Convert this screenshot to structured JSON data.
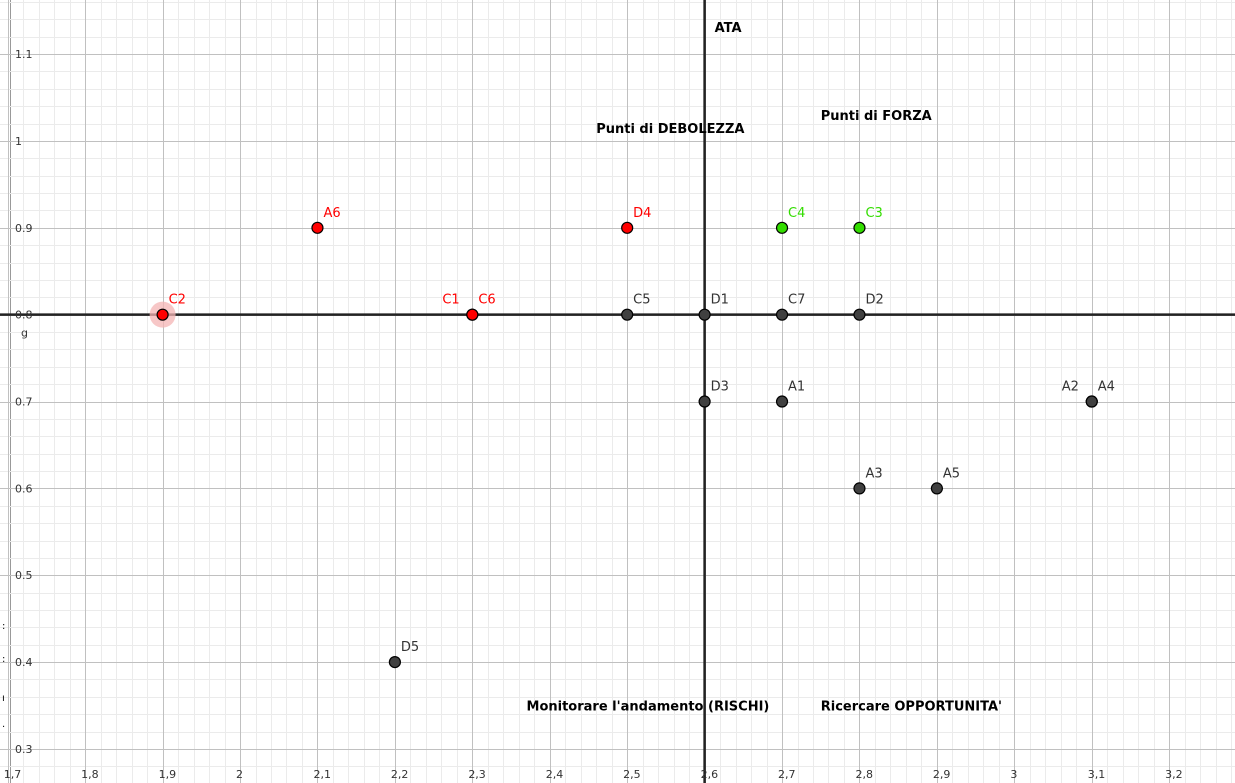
{
  "chart_data": {
    "type": "scatter",
    "title": "",
    "xlabel": "",
    "ylabel": "",
    "xlim": [
      1.69,
      3.285
    ],
    "ylim": [
      0.2608,
      1.1623
    ],
    "grid": true,
    "x_ticks": [
      {
        "value": 1.7,
        "label": "1,7"
      },
      {
        "value": 1.8,
        "label": "1,8"
      },
      {
        "value": 1.9,
        "label": "1,9"
      },
      {
        "value": 2.0,
        "label": "2"
      },
      {
        "value": 2.1,
        "label": "2,1"
      },
      {
        "value": 2.2,
        "label": "2,2"
      },
      {
        "value": 2.3,
        "label": "2,3"
      },
      {
        "value": 2.4,
        "label": "2,4"
      },
      {
        "value": 2.5,
        "label": "2,5"
      },
      {
        "value": 2.6,
        "label": "2,6"
      },
      {
        "value": 2.7,
        "label": "2,7"
      },
      {
        "value": 2.8,
        "label": "2,8"
      },
      {
        "value": 2.9,
        "label": "2,9"
      },
      {
        "value": 3.0,
        "label": "3"
      },
      {
        "value": 3.1,
        "label": "3,1"
      },
      {
        "value": 3.2,
        "label": "3,2"
      }
    ],
    "y_ticks": [
      {
        "value": 0.3,
        "label": "0.3"
      },
      {
        "value": 0.4,
        "label": "0.4"
      },
      {
        "value": 0.5,
        "label": "0.5"
      },
      {
        "value": 0.6,
        "label": "0.6"
      },
      {
        "value": 0.7,
        "label": "0.7"
      },
      {
        "value": 0.8,
        "label": "0.8"
      },
      {
        "value": 0.9,
        "label": "0.9"
      },
      {
        "value": 1.0,
        "label": "1"
      },
      {
        "value": 1.1,
        "label": "1.1"
      }
    ],
    "reference_lines": {
      "vertical": {
        "x": 2.6,
        "name": "ATA"
      },
      "horizontal": {
        "y": 0.8,
        "name": "g"
      }
    },
    "region_labels": [
      {
        "text": "Punti di DEBOLEZZA",
        "x": 2.46,
        "y": 1.015
      },
      {
        "text": "Punti di FORZA",
        "x": 2.75,
        "y": 1.03
      },
      {
        "text": "Monitorare l'andamento (RISCHI)",
        "x": 2.37,
        "y": 0.35
      },
      {
        "text": "Ricercare OPPORTUNITA'",
        "x": 2.75,
        "y": 0.35
      }
    ],
    "colors": {
      "red": "#ff0000",
      "green": "#33dd00",
      "dark": "#404040",
      "label_dark": "#333333",
      "highlight": "#f4b4b4"
    },
    "points": [
      {
        "name": "C2",
        "x": 1.9,
        "y": 0.8,
        "color": "red",
        "highlight": true,
        "label_pos": "right"
      },
      {
        "name": "A6",
        "x": 2.1,
        "y": 0.9,
        "color": "red",
        "label_pos": "right"
      },
      {
        "name": "C1",
        "x": 2.3,
        "y": 0.8,
        "color": "red",
        "label_pos": "left"
      },
      {
        "name": "C6",
        "x": 2.3,
        "y": 0.8,
        "color": "red",
        "label_pos": "right"
      },
      {
        "name": "D4",
        "x": 2.5,
        "y": 0.9,
        "color": "red",
        "label_pos": "right"
      },
      {
        "name": "C4",
        "x": 2.7,
        "y": 0.9,
        "color": "green",
        "label_pos": "right"
      },
      {
        "name": "C3",
        "x": 2.8,
        "y": 0.9,
        "color": "green",
        "label_pos": "right"
      },
      {
        "name": "C5",
        "x": 2.5,
        "y": 0.8,
        "color": "dark",
        "label_pos": "right"
      },
      {
        "name": "D1",
        "x": 2.6,
        "y": 0.8,
        "color": "dark",
        "label_pos": "right"
      },
      {
        "name": "C7",
        "x": 2.7,
        "y": 0.8,
        "color": "dark",
        "label_pos": "right"
      },
      {
        "name": "D2",
        "x": 2.8,
        "y": 0.8,
        "color": "dark",
        "label_pos": "right"
      },
      {
        "name": "D3",
        "x": 2.6,
        "y": 0.7,
        "color": "dark",
        "label_pos": "right"
      },
      {
        "name": "A1",
        "x": 2.7,
        "y": 0.7,
        "color": "dark",
        "label_pos": "right"
      },
      {
        "name": "A2",
        "x": 3.1,
        "y": 0.7,
        "color": "dark",
        "label_pos": "left"
      },
      {
        "name": "A4",
        "x": 3.1,
        "y": 0.7,
        "color": "dark",
        "label_pos": "right"
      },
      {
        "name": "A3",
        "x": 2.8,
        "y": 0.6,
        "color": "dark",
        "label_pos": "right"
      },
      {
        "name": "A5",
        "x": 2.9,
        "y": 0.6,
        "color": "dark",
        "label_pos": "right"
      },
      {
        "name": "D5",
        "x": 2.2,
        "y": 0.4,
        "color": "dark",
        "label_pos": "right"
      }
    ]
  },
  "edge_glyphs": [
    ":",
    ":",
    "ı",
    "."
  ]
}
